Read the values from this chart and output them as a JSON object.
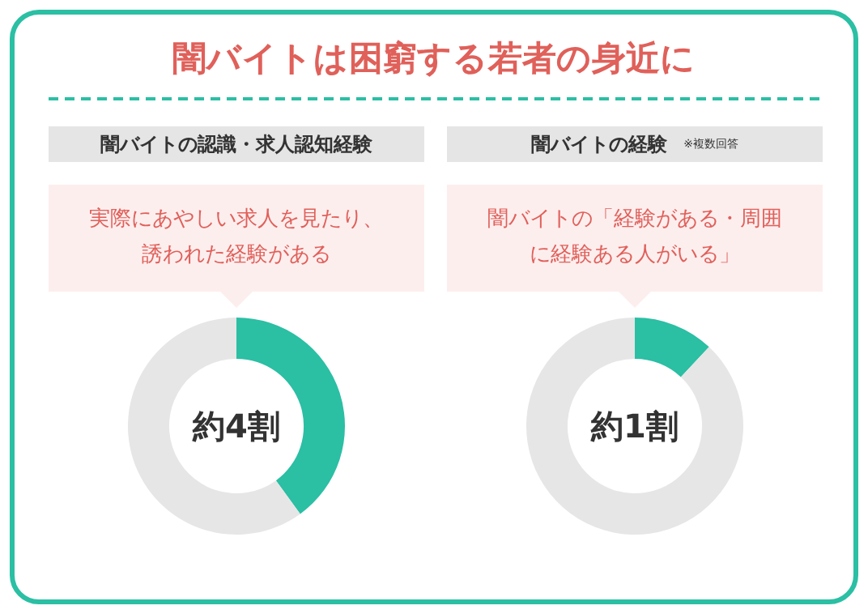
{
  "chart_data": [
    {
      "type": "other",
      "title": "闇バイトは困窮する若者の身近に"
    },
    {
      "type": "donut",
      "title": "闇バイトの認識・求人認知経験",
      "subtitle": "実際にあやしい求人を見たり、誘われた経験がある",
      "annotations": [
        "約4割"
      ],
      "categories": [
        null,
        null
      ],
      "values": [
        40,
        60
      ],
      "colors": [
        "#2bbfa4",
        "#e6e6e6"
      ]
    },
    {
      "type": "donut",
      "title": "闇バイトの経験",
      "subtitle": "闇バイトの「経験がある・周囲に経験ある人がいる」",
      "annotations": [
        "※複数回答",
        "約1割"
      ],
      "categories": [
        null,
        null
      ],
      "values": [
        12,
        88
      ],
      "colors": [
        "#2bbfa4",
        "#e6e6e6"
      ]
    }
  ]
}
